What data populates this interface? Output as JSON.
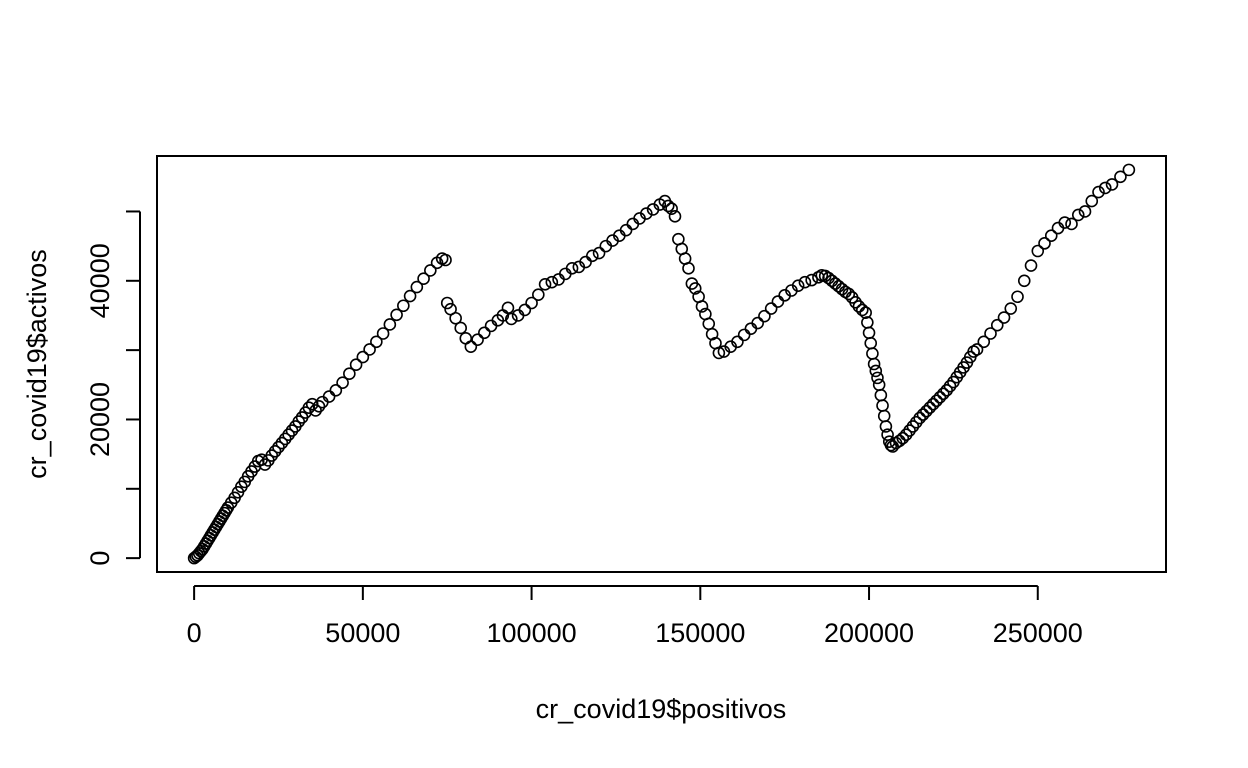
{
  "chart_data": {
    "type": "scatter",
    "title": "",
    "xlabel": "cr_covid19$positivos",
    "ylabel": "cr_covid19$activos",
    "xlim": [
      -11000,
      288000
    ],
    "ylim": [
      -2000,
      58000
    ],
    "xticks": [
      0,
      50000,
      100000,
      150000,
      200000,
      250000
    ],
    "yticks": [
      0,
      10000,
      20000,
      30000,
      40000,
      50000
    ],
    "ytick_labels": [
      "0",
      "",
      "20000",
      "",
      "40000",
      ""
    ],
    "marker": "open-circle",
    "grid": false,
    "series": [
      {
        "name": "activos",
        "points": [
          [
            0,
            0
          ],
          [
            500,
            200
          ],
          [
            1000,
            400
          ],
          [
            1500,
            700
          ],
          [
            2000,
            1000
          ],
          [
            2500,
            1300
          ],
          [
            3000,
            1700
          ],
          [
            3500,
            2100
          ],
          [
            4000,
            2500
          ],
          [
            4500,
            2900
          ],
          [
            5000,
            3300
          ],
          [
            5500,
            3700
          ],
          [
            6000,
            4100
          ],
          [
            6500,
            4500
          ],
          [
            7000,
            4900
          ],
          [
            7500,
            5300
          ],
          [
            8000,
            5700
          ],
          [
            8500,
            6100
          ],
          [
            9000,
            6500
          ],
          [
            9500,
            6900
          ],
          [
            10000,
            7300
          ],
          [
            11000,
            8000
          ],
          [
            12000,
            8700
          ],
          [
            13000,
            9500
          ],
          [
            14000,
            10300
          ],
          [
            15000,
            11000
          ],
          [
            16000,
            11800
          ],
          [
            17000,
            12500
          ],
          [
            18000,
            13200
          ],
          [
            19000,
            14000
          ],
          [
            20000,
            14200
          ],
          [
            21000,
            13500
          ],
          [
            22000,
            14100
          ],
          [
            23000,
            14800
          ],
          [
            24000,
            15400
          ],
          [
            25000,
            16000
          ],
          [
            26000,
            16600
          ],
          [
            27000,
            17200
          ],
          [
            28000,
            17800
          ],
          [
            29000,
            18400
          ],
          [
            30000,
            19000
          ],
          [
            31000,
            19700
          ],
          [
            32000,
            20300
          ],
          [
            33000,
            21000
          ],
          [
            34000,
            21700
          ],
          [
            35000,
            22200
          ],
          [
            36000,
            21300
          ],
          [
            37000,
            21900
          ],
          [
            38000,
            22500
          ],
          [
            40000,
            23300
          ],
          [
            42000,
            24200
          ],
          [
            44000,
            25300
          ],
          [
            46000,
            26600
          ],
          [
            48000,
            27900
          ],
          [
            50000,
            29000
          ],
          [
            52000,
            30100
          ],
          [
            54000,
            31200
          ],
          [
            56000,
            32400
          ],
          [
            58000,
            33700
          ],
          [
            60000,
            35100
          ],
          [
            62000,
            36400
          ],
          [
            64000,
            37800
          ],
          [
            66000,
            39100
          ],
          [
            68000,
            40300
          ],
          [
            70000,
            41500
          ],
          [
            72000,
            42600
          ],
          [
            73500,
            43200
          ],
          [
            74500,
            43000
          ],
          [
            75000,
            36800
          ],
          [
            76000,
            35900
          ],
          [
            77500,
            34600
          ],
          [
            79000,
            33200
          ],
          [
            80500,
            31700
          ],
          [
            82000,
            30500
          ],
          [
            84000,
            31500
          ],
          [
            86000,
            32500
          ],
          [
            88000,
            33500
          ],
          [
            90000,
            34300
          ],
          [
            91500,
            35000
          ],
          [
            93000,
            36100
          ],
          [
            94000,
            34500
          ],
          [
            96000,
            35000
          ],
          [
            98000,
            35800
          ],
          [
            100000,
            36800
          ],
          [
            102000,
            38000
          ],
          [
            104000,
            39500
          ],
          [
            106000,
            39800
          ],
          [
            108000,
            40200
          ],
          [
            110000,
            41000
          ],
          [
            112000,
            41800
          ],
          [
            114000,
            42000
          ],
          [
            116000,
            42700
          ],
          [
            118000,
            43600
          ],
          [
            120000,
            44000
          ],
          [
            122000,
            45000
          ],
          [
            124000,
            45800
          ],
          [
            126000,
            46500
          ],
          [
            128000,
            47300
          ],
          [
            130000,
            48200
          ],
          [
            132000,
            49000
          ],
          [
            134000,
            49700
          ],
          [
            136000,
            50300
          ],
          [
            138000,
            51000
          ],
          [
            139500,
            51500
          ],
          [
            140500,
            50800
          ],
          [
            141500,
            50400
          ],
          [
            142500,
            49300
          ],
          [
            143500,
            46000
          ],
          [
            144500,
            44600
          ],
          [
            145500,
            43200
          ],
          [
            146500,
            41800
          ],
          [
            147500,
            39600
          ],
          [
            148500,
            38900
          ],
          [
            149500,
            37700
          ],
          [
            150500,
            36300
          ],
          [
            151500,
            35200
          ],
          [
            152500,
            33800
          ],
          [
            153500,
            32300
          ],
          [
            154500,
            31000
          ],
          [
            155500,
            29600
          ],
          [
            157000,
            29800
          ],
          [
            159000,
            30500
          ],
          [
            161000,
            31200
          ],
          [
            163000,
            32200
          ],
          [
            165000,
            33100
          ],
          [
            167000,
            33900
          ],
          [
            169000,
            34900
          ],
          [
            171000,
            36000
          ],
          [
            173000,
            37000
          ],
          [
            175000,
            37900
          ],
          [
            177000,
            38600
          ],
          [
            179000,
            39300
          ],
          [
            181000,
            39800
          ],
          [
            183000,
            40100
          ],
          [
            185000,
            40500
          ],
          [
            186000,
            40800
          ],
          [
            187000,
            40700
          ],
          [
            188000,
            40400
          ],
          [
            189000,
            40000
          ],
          [
            190000,
            39600
          ],
          [
            191000,
            39200
          ],
          [
            192000,
            38800
          ],
          [
            193000,
            38400
          ],
          [
            194000,
            38100
          ],
          [
            195000,
            37600
          ],
          [
            196000,
            36900
          ],
          [
            197000,
            36300
          ],
          [
            198000,
            35800
          ],
          [
            199000,
            35400
          ],
          [
            199500,
            34000
          ],
          [
            200000,
            32500
          ],
          [
            200500,
            31000
          ],
          [
            201000,
            29500
          ],
          [
            201500,
            28000
          ],
          [
            202000,
            27000
          ],
          [
            202500,
            26000
          ],
          [
            203000,
            25000
          ],
          [
            203500,
            23500
          ],
          [
            204000,
            22000
          ],
          [
            204500,
            20500
          ],
          [
            205000,
            19000
          ],
          [
            205500,
            17800
          ],
          [
            206000,
            16800
          ],
          [
            206500,
            16300
          ],
          [
            207000,
            16100
          ],
          [
            208000,
            16600
          ],
          [
            209000,
            16900
          ],
          [
            210000,
            17300
          ],
          [
            211000,
            17800
          ],
          [
            212000,
            18400
          ],
          [
            213000,
            19000
          ],
          [
            214000,
            19600
          ],
          [
            215000,
            20200
          ],
          [
            216000,
            20700
          ],
          [
            217000,
            21200
          ],
          [
            218000,
            21700
          ],
          [
            219000,
            22200
          ],
          [
            220000,
            22700
          ],
          [
            221000,
            23200
          ],
          [
            222000,
            23700
          ],
          [
            223000,
            24200
          ],
          [
            224000,
            24800
          ],
          [
            225000,
            25400
          ],
          [
            226000,
            26100
          ],
          [
            227000,
            26800
          ],
          [
            228000,
            27500
          ],
          [
            229000,
            28200
          ],
          [
            230000,
            29000
          ],
          [
            231000,
            29800
          ],
          [
            232000,
            30100
          ],
          [
            234000,
            31200
          ],
          [
            236000,
            32400
          ],
          [
            238000,
            33600
          ],
          [
            240000,
            34700
          ],
          [
            242000,
            36000
          ],
          [
            244000,
            37700
          ],
          [
            246000,
            40000
          ],
          [
            248000,
            42200
          ],
          [
            250000,
            44300
          ],
          [
            252000,
            45400
          ],
          [
            254000,
            46500
          ],
          [
            256000,
            47600
          ],
          [
            258000,
            48400
          ],
          [
            260000,
            48200
          ],
          [
            262000,
            49500
          ],
          [
            264000,
            50000
          ],
          [
            266000,
            51500
          ],
          [
            268000,
            52800
          ],
          [
            270000,
            53400
          ],
          [
            272000,
            53900
          ],
          [
            274500,
            55000
          ],
          [
            277000,
            56000
          ]
        ]
      }
    ]
  }
}
